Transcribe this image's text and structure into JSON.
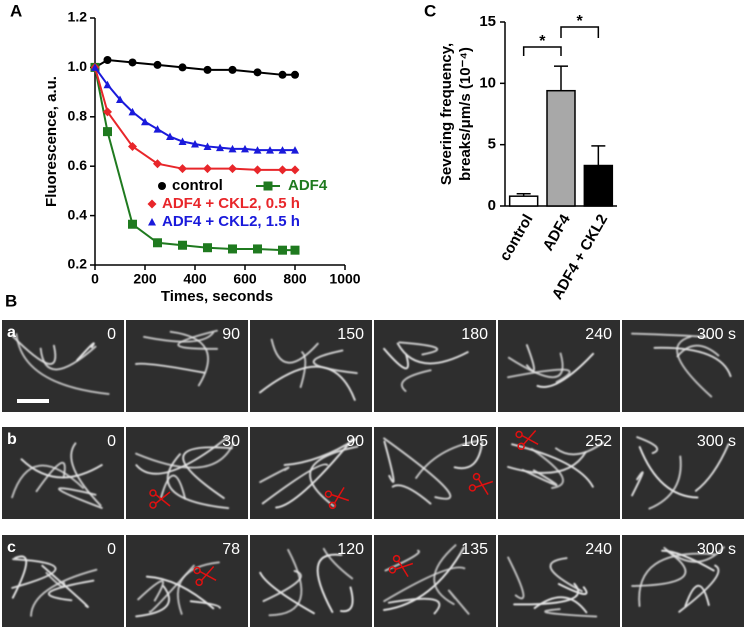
{
  "panel_labels": [
    "A",
    "B",
    "C"
  ],
  "chart_data": [
    {
      "type": "line",
      "xlabel": "Times, seconds",
      "ylabel": "Fluorescence, a.u.",
      "xlim": [
        0,
        1000
      ],
      "xticks": [
        0,
        200,
        400,
        600,
        800,
        1000
      ],
      "ylim": [
        0.2,
        1.2
      ],
      "yticks": [
        0.2,
        0.4,
        0.6,
        0.8,
        {
          "value": 1,
          "label": "1.0"
        },
        1.2
      ],
      "series": [
        {
          "name": "control",
          "color": "#000000",
          "marker": "circle",
          "x": [
            0,
            50,
            150,
            250,
            350,
            450,
            550,
            650,
            750,
            800
          ],
          "values": [
            1.0,
            1.03,
            1.02,
            1.01,
            1.0,
            0.99,
            0.99,
            0.98,
            0.97,
            0.97
          ]
        },
        {
          "name": "ADF4",
          "color": "#1f7a1f",
          "marker": "square",
          "x": [
            0,
            50,
            150,
            250,
            350,
            450,
            550,
            650,
            750,
            800
          ],
          "values": [
            1.0,
            0.74,
            0.365,
            0.29,
            0.28,
            0.27,
            0.265,
            0.265,
            0.26,
            0.26
          ]
        },
        {
          "name": "ADF4 + CKL2, 0.5 h",
          "color": "#e8262a",
          "marker": "diamond",
          "x": [
            0,
            50,
            150,
            250,
            350,
            450,
            550,
            650,
            750,
            800
          ],
          "values": [
            1.0,
            0.82,
            0.68,
            0.61,
            0.59,
            0.59,
            0.59,
            0.585,
            0.585,
            0.585
          ]
        },
        {
          "name": "ADF4 + CKL2, 1.5 h",
          "color": "#1a1adb",
          "marker": "triangle",
          "x": [
            0,
            50,
            100,
            150,
            200,
            250,
            300,
            350,
            400,
            450,
            500,
            550,
            600,
            650,
            700,
            750,
            800
          ],
          "values": [
            1.0,
            0.93,
            0.87,
            0.82,
            0.78,
            0.75,
            0.72,
            0.7,
            0.69,
            0.68,
            0.675,
            0.67,
            0.67,
            0.665,
            0.665,
            0.665,
            0.665
          ]
        }
      ]
    },
    {
      "type": "bar",
      "ylabel": [
        "Severing frequency,",
        "breaks/μm/s (10⁻⁴)"
      ],
      "categories": [
        "control",
        "ADF4",
        "ADF4 + CKL2"
      ],
      "values": [
        0.8,
        9.4,
        3.3
      ],
      "errors": [
        0.2,
        2.0,
        1.6
      ],
      "colors": [
        "#ffffff",
        "#a8a8a8",
        "#000000"
      ],
      "ylim": [
        0,
        15
      ],
      "yticks": [
        0,
        5,
        10,
        15
      ],
      "annotations": [
        "*",
        "*"
      ]
    }
  ],
  "micrographs": {
    "rows": [
      {
        "label": "a",
        "times": [
          0,
          90,
          150,
          180,
          240,
          "300 s"
        ]
      },
      {
        "label": "b",
        "times": [
          0,
          30,
          90,
          105,
          252,
          "300 s"
        ]
      },
      {
        "label": "c",
        "times": [
          0,
          78,
          120,
          135,
          240,
          "300 s"
        ]
      }
    ]
  }
}
